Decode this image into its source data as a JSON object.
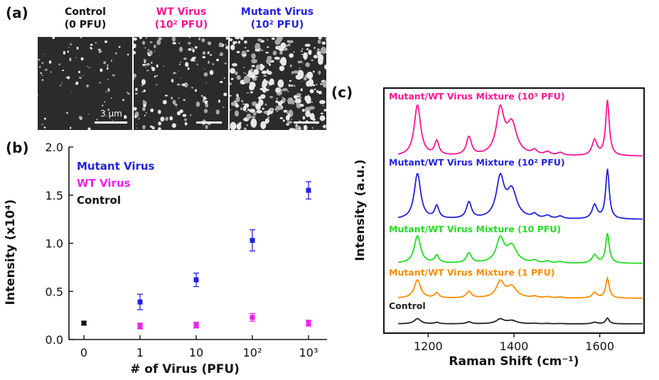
{
  "panels": {
    "a": "(a)",
    "b": "(b)",
    "c": "(c)"
  },
  "micrographs": [
    {
      "title_line1": "Control",
      "title_line2": "(0 PFU)",
      "color": "#111111",
      "density": 0.15
    },
    {
      "title_line1": "WT Virus",
      "title_line2": "(10² PFU)",
      "color": "#ff1493",
      "density": 0.45
    },
    {
      "title_line1": "Mutant Virus",
      "title_line2": "(10² PFU)",
      "color": "#2222dd",
      "density": 1.0
    }
  ],
  "scalebar_label": "3 μm",
  "colors": {
    "mutant": "#2222dd",
    "wt": "#ee22ee",
    "control": "#111111",
    "m1000": "#ff1493",
    "m100": "#2222dd",
    "m10": "#22dd22",
    "m1": "#ff8c00",
    "ctrl": "#222222"
  },
  "chart_data": [
    {
      "type": "scatter",
      "xlabel": "# of Virus (PFU)",
      "ylabel": "Intensity (x10⁴)",
      "categories": [
        "0",
        "1",
        "10",
        "10²",
        "10³"
      ],
      "ylim": [
        0.0,
        2.0
      ],
      "yticks": [
        "0.0",
        "0.5",
        "1.0",
        "1.5",
        "2.0"
      ],
      "legend": [
        "Mutant Virus",
        "WT Virus",
        "Control"
      ],
      "series": [
        {
          "name": "Mutant Virus",
          "x": [
            1,
            2,
            3,
            4
          ],
          "y": [
            0.39,
            0.62,
            1.03,
            1.55
          ],
          "err": [
            0.08,
            0.07,
            0.11,
            0.09
          ]
        },
        {
          "name": "WT Virus",
          "x": [
            1,
            2,
            3,
            4
          ],
          "y": [
            0.14,
            0.15,
            0.23,
            0.17
          ],
          "err": [
            0.03,
            0.03,
            0.04,
            0.03
          ]
        },
        {
          "name": "Control",
          "x": [
            0
          ],
          "y": [
            0.17
          ],
          "err": [
            0.02
          ]
        }
      ]
    },
    {
      "type": "line",
      "xlabel": "Raman Shift (cm⁻¹)",
      "ylabel": "Intensity (a.u.)",
      "xlim": [
        1100,
        1700
      ],
      "xticks": [
        1200,
        1400,
        1600
      ],
      "peaks": [
        1175,
        1220,
        1295,
        1368,
        1395,
        1448,
        1478,
        1508,
        1588,
        1618
      ],
      "series": [
        {
          "name": "Mutant/WT Virus Mixture (10³ PFU)",
          "scale": 1.0,
          "offset": 4
        },
        {
          "name": "Mutant/WT Virus Mixture (10² PFU)",
          "scale": 0.95,
          "offset": 3
        },
        {
          "name": "Mutant/WT Virus Mixture  (10 PFU)",
          "scale": 0.6,
          "offset": 2
        },
        {
          "name": "Mutant/WT Virus Mixture (1 PFU)",
          "scale": 0.4,
          "offset": 1
        },
        {
          "name": "Control",
          "scale": 0.07,
          "offset": 0
        }
      ]
    }
  ]
}
